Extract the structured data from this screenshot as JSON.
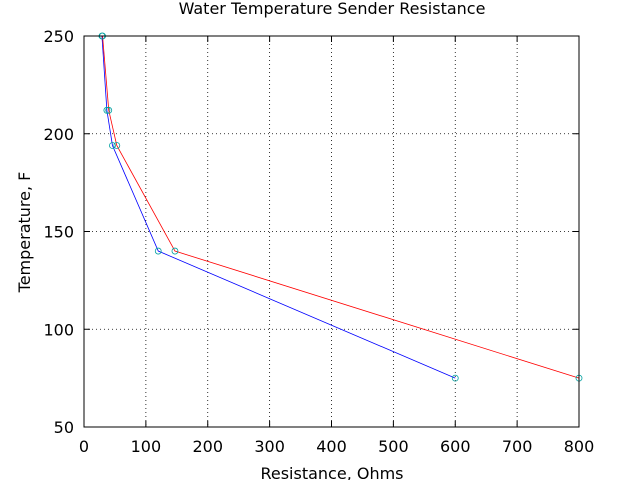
{
  "chart_data": {
    "type": "line",
    "title": "Water Temperature Sender Resistance",
    "xlabel": "Resistance, Ohms",
    "ylabel": "Temperature, F",
    "xlim": [
      0,
      800
    ],
    "ylim": [
      50,
      250
    ],
    "xticks": [
      0,
      100,
      200,
      300,
      400,
      500,
      600,
      700,
      800
    ],
    "yticks": [
      50,
      100,
      150,
      200,
      250
    ],
    "grid": true,
    "legend": "none",
    "series": [
      {
        "color": "#0000ff",
        "marker": "circle",
        "marker_color": "#00a0a0",
        "points": [
          [
            29,
            250
          ],
          [
            37,
            212
          ],
          [
            46,
            194
          ],
          [
            120,
            140
          ],
          [
            600,
            75
          ]
        ]
      },
      {
        "color": "#ff0000",
        "marker": "circle",
        "marker_color": "#00a0a0",
        "points": [
          [
            30,
            250
          ],
          [
            40,
            212
          ],
          [
            53,
            194
          ],
          [
            147,
            140
          ],
          [
            800,
            75
          ]
        ]
      }
    ]
  }
}
